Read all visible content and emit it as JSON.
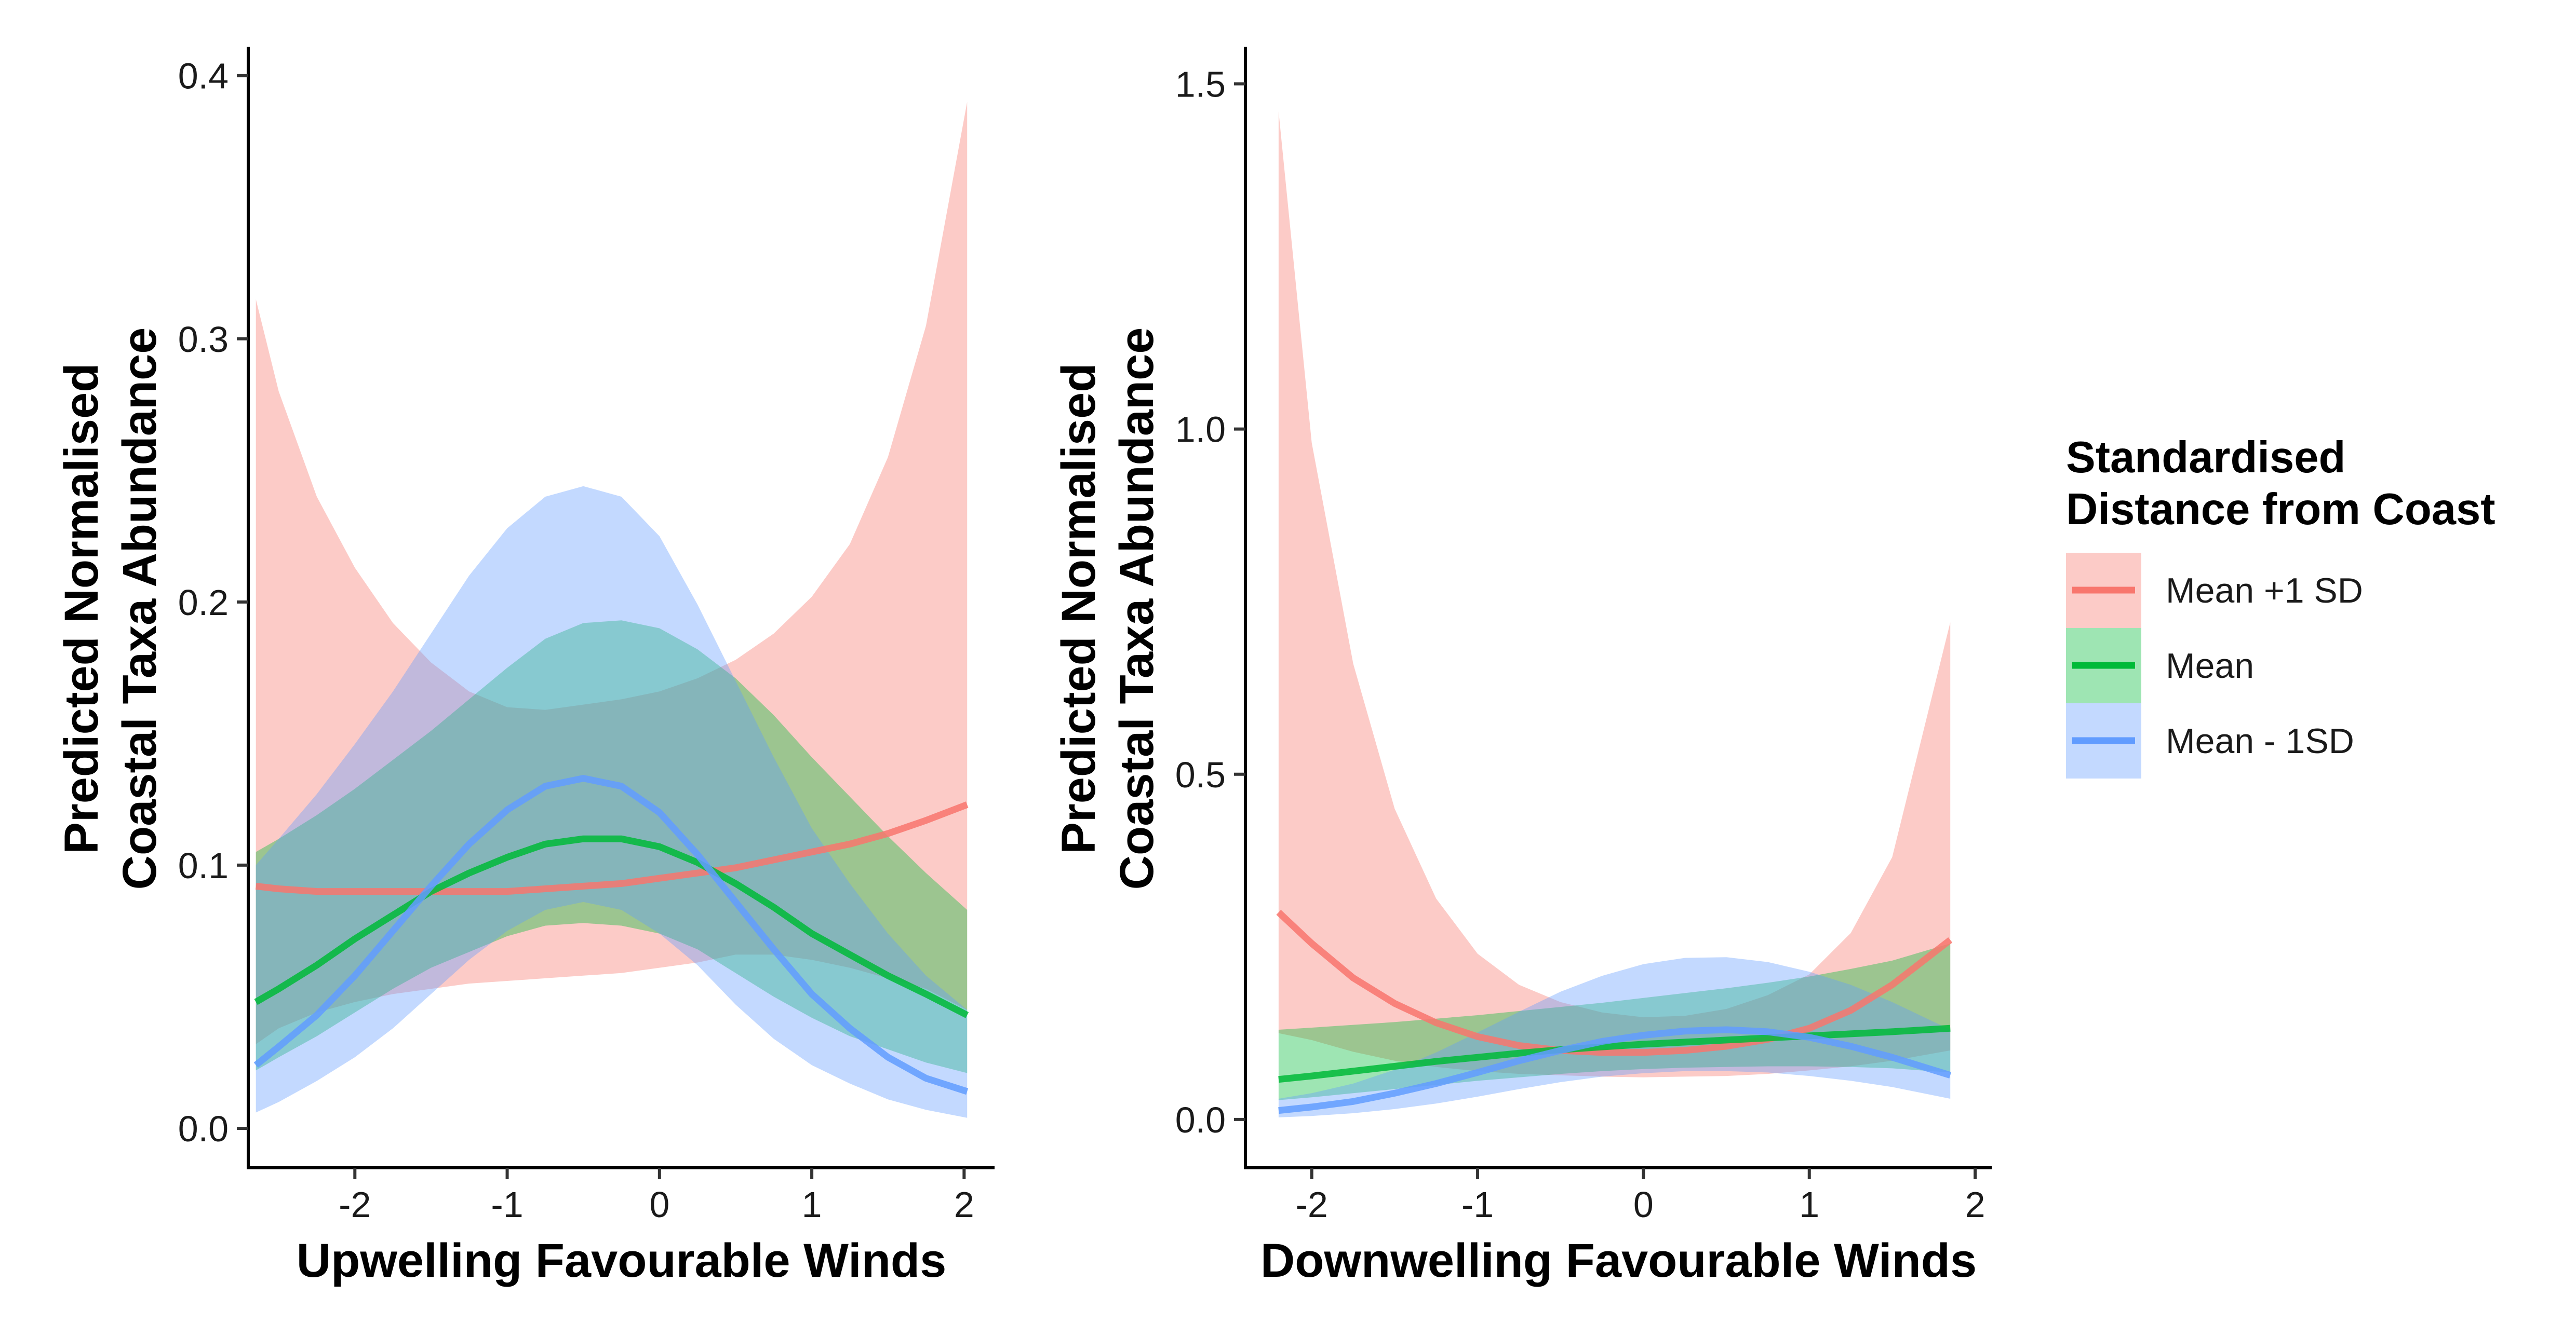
{
  "colors": {
    "mean_plus_1sd": "#F8766D",
    "mean": "#00BA38",
    "mean_minus_1sd": "#619CFF"
  },
  "legend": {
    "title_line1": "Standardised",
    "title_line2": "Distance from Coast",
    "items": [
      {
        "label": "Mean +1 SD",
        "color": "#F8766D"
      },
      {
        "label": "Mean",
        "color": "#00BA38"
      },
      {
        "label": "Mean - 1SD",
        "color": "#619CFF"
      }
    ]
  },
  "chart_data": [
    {
      "type": "line",
      "xlabel": "Upwelling Favourable Winds",
      "ylabel_line1": "Predicted Normalised",
      "ylabel_line2": "Coastal Taxa Abundance",
      "xlim": [
        -2.7,
        2.2
      ],
      "ylim": [
        -0.015,
        0.41
      ],
      "xticks": [
        -2,
        -1,
        0,
        1,
        2
      ],
      "xtick_labels": [
        "-2",
        "-1",
        "0",
        "1",
        "2"
      ],
      "yticks": [
        0.0,
        0.1,
        0.2,
        0.3,
        0.4
      ],
      "ytick_labels": [
        "0.0",
        "0.1",
        "0.2",
        "0.3",
        "0.4"
      ],
      "grid": false,
      "series": [
        {
          "name": "Mean +1 SD",
          "color": "#F8766D",
          "x": [
            -2.65,
            -2.5,
            -2.25,
            -2.0,
            -1.75,
            -1.5,
            -1.25,
            -1.0,
            -0.75,
            -0.5,
            -0.25,
            0.0,
            0.25,
            0.5,
            0.75,
            1.0,
            1.25,
            1.5,
            1.75,
            2.02
          ],
          "y": [
            0.092,
            0.091,
            0.09,
            0.09,
            0.09,
            0.09,
            0.09,
            0.09,
            0.091,
            0.092,
            0.093,
            0.095,
            0.097,
            0.099,
            0.102,
            0.105,
            0.108,
            0.112,
            0.117,
            0.123
          ],
          "upper": [
            0.315,
            0.28,
            0.24,
            0.213,
            0.192,
            0.177,
            0.166,
            0.16,
            0.159,
            0.161,
            0.163,
            0.166,
            0.171,
            0.178,
            0.188,
            0.202,
            0.222,
            0.255,
            0.305,
            0.39
          ],
          "lower": [
            0.032,
            0.038,
            0.044,
            0.048,
            0.051,
            0.053,
            0.055,
            0.056,
            0.057,
            0.058,
            0.059,
            0.061,
            0.063,
            0.066,
            0.066,
            0.064,
            0.061,
            0.057,
            0.053,
            0.045
          ]
        },
        {
          "name": "Mean",
          "color": "#00BA38",
          "x": [
            -2.65,
            -2.5,
            -2.25,
            -2.0,
            -1.75,
            -1.5,
            -1.25,
            -1.0,
            -0.75,
            -0.5,
            -0.25,
            0.0,
            0.25,
            0.5,
            0.75,
            1.0,
            1.25,
            1.5,
            1.75,
            2.02
          ],
          "y": [
            0.048,
            0.053,
            0.062,
            0.072,
            0.081,
            0.09,
            0.097,
            0.103,
            0.108,
            0.11,
            0.11,
            0.107,
            0.101,
            0.093,
            0.084,
            0.074,
            0.066,
            0.058,
            0.051,
            0.043
          ],
          "upper": [
            0.105,
            0.11,
            0.119,
            0.129,
            0.14,
            0.151,
            0.163,
            0.175,
            0.186,
            0.192,
            0.193,
            0.19,
            0.182,
            0.171,
            0.157,
            0.141,
            0.126,
            0.111,
            0.097,
            0.083
          ],
          "lower": [
            0.022,
            0.027,
            0.035,
            0.044,
            0.053,
            0.061,
            0.067,
            0.073,
            0.077,
            0.078,
            0.077,
            0.074,
            0.068,
            0.059,
            0.05,
            0.042,
            0.035,
            0.03,
            0.025,
            0.021
          ]
        },
        {
          "name": "Mean - 1SD",
          "color": "#619CFF",
          "x": [
            -2.65,
            -2.5,
            -2.25,
            -2.0,
            -1.75,
            -1.5,
            -1.25,
            -1.0,
            -0.75,
            -0.5,
            -0.25,
            0.0,
            0.25,
            0.5,
            0.75,
            1.0,
            1.25,
            1.5,
            1.75,
            2.02
          ],
          "y": [
            0.024,
            0.031,
            0.043,
            0.058,
            0.075,
            0.092,
            0.108,
            0.121,
            0.13,
            0.133,
            0.13,
            0.12,
            0.104,
            0.086,
            0.068,
            0.051,
            0.038,
            0.027,
            0.019,
            0.014
          ],
          "upper": [
            0.1,
            0.11,
            0.127,
            0.146,
            0.166,
            0.188,
            0.21,
            0.228,
            0.24,
            0.244,
            0.24,
            0.225,
            0.199,
            0.17,
            0.141,
            0.114,
            0.093,
            0.074,
            0.058,
            0.045
          ],
          "lower": [
            0.006,
            0.01,
            0.018,
            0.027,
            0.038,
            0.051,
            0.064,
            0.075,
            0.083,
            0.086,
            0.083,
            0.074,
            0.062,
            0.047,
            0.034,
            0.024,
            0.017,
            0.011,
            0.007,
            0.004
          ]
        }
      ]
    },
    {
      "type": "line",
      "xlabel": "Downwelling Favourable Winds",
      "ylabel_line1": "Predicted Normalised",
      "ylabel_line2": "Coastal Taxa Abundance",
      "xlim": [
        -2.4,
        2.1
      ],
      "ylim": [
        -0.07,
        1.55
      ],
      "xticks": [
        -2,
        -1,
        0,
        1,
        2
      ],
      "xtick_labels": [
        "-2",
        "-1",
        "0",
        "1",
        "2"
      ],
      "yticks": [
        0.0,
        0.5,
        1.0,
        1.5
      ],
      "ytick_labels": [
        "0.0",
        "0.5",
        "1.0",
        "1.5"
      ],
      "grid": false,
      "series": [
        {
          "name": "Mean +1 SD",
          "color": "#F8766D",
          "x": [
            -2.2,
            -2.0,
            -1.75,
            -1.5,
            -1.25,
            -1.0,
            -0.75,
            -0.5,
            -0.25,
            0.0,
            0.25,
            0.5,
            0.75,
            1.0,
            1.25,
            1.5,
            1.85
          ],
          "y": [
            0.3,
            0.255,
            0.205,
            0.168,
            0.14,
            0.12,
            0.107,
            0.1,
            0.097,
            0.097,
            0.1,
            0.106,
            0.116,
            0.132,
            0.158,
            0.195,
            0.26
          ],
          "upper": [
            1.46,
            0.98,
            0.66,
            0.45,
            0.32,
            0.24,
            0.195,
            0.17,
            0.155,
            0.148,
            0.15,
            0.16,
            0.18,
            0.21,
            0.27,
            0.38,
            0.72
          ],
          "lower": [
            0.125,
            0.115,
            0.098,
            0.085,
            0.076,
            0.07,
            0.066,
            0.064,
            0.062,
            0.061,
            0.062,
            0.063,
            0.066,
            0.071,
            0.077,
            0.085,
            0.1
          ]
        },
        {
          "name": "Mean",
          "color": "#00BA38",
          "x": [
            -2.2,
            -2.0,
            -1.75,
            -1.5,
            -1.25,
            -1.0,
            -0.75,
            -0.5,
            -0.25,
            0.0,
            0.25,
            0.5,
            0.75,
            1.0,
            1.25,
            1.5,
            1.85
          ],
          "y": [
            0.058,
            0.063,
            0.07,
            0.077,
            0.084,
            0.09,
            0.096,
            0.101,
            0.105,
            0.109,
            0.112,
            0.115,
            0.118,
            0.121,
            0.124,
            0.127,
            0.132
          ],
          "upper": [
            0.13,
            0.133,
            0.137,
            0.141,
            0.146,
            0.151,
            0.157,
            0.163,
            0.169,
            0.176,
            0.183,
            0.19,
            0.198,
            0.207,
            0.218,
            0.23,
            0.255
          ],
          "lower": [
            0.028,
            0.032,
            0.038,
            0.044,
            0.05,
            0.056,
            0.061,
            0.066,
            0.07,
            0.073,
            0.075,
            0.076,
            0.077,
            0.077,
            0.076,
            0.074,
            0.068
          ]
        },
        {
          "name": "Mean - 1SD",
          "color": "#619CFF",
          "x": [
            -2.2,
            -2.0,
            -1.75,
            -1.5,
            -1.25,
            -1.0,
            -0.75,
            -0.5,
            -0.25,
            0.0,
            0.25,
            0.5,
            0.75,
            1.0,
            1.25,
            1.5,
            1.85
          ],
          "y": [
            0.013,
            0.018,
            0.026,
            0.038,
            0.052,
            0.068,
            0.085,
            0.1,
            0.113,
            0.122,
            0.128,
            0.13,
            0.127,
            0.119,
            0.106,
            0.09,
            0.064
          ],
          "upper": [
            0.03,
            0.038,
            0.052,
            0.072,
            0.097,
            0.126,
            0.156,
            0.185,
            0.208,
            0.225,
            0.234,
            0.235,
            0.228,
            0.214,
            0.195,
            0.17,
            0.13
          ],
          "lower": [
            0.003,
            0.005,
            0.009,
            0.015,
            0.023,
            0.033,
            0.044,
            0.054,
            0.062,
            0.067,
            0.07,
            0.07,
            0.068,
            0.063,
            0.056,
            0.047,
            0.03
          ]
        }
      ]
    }
  ]
}
